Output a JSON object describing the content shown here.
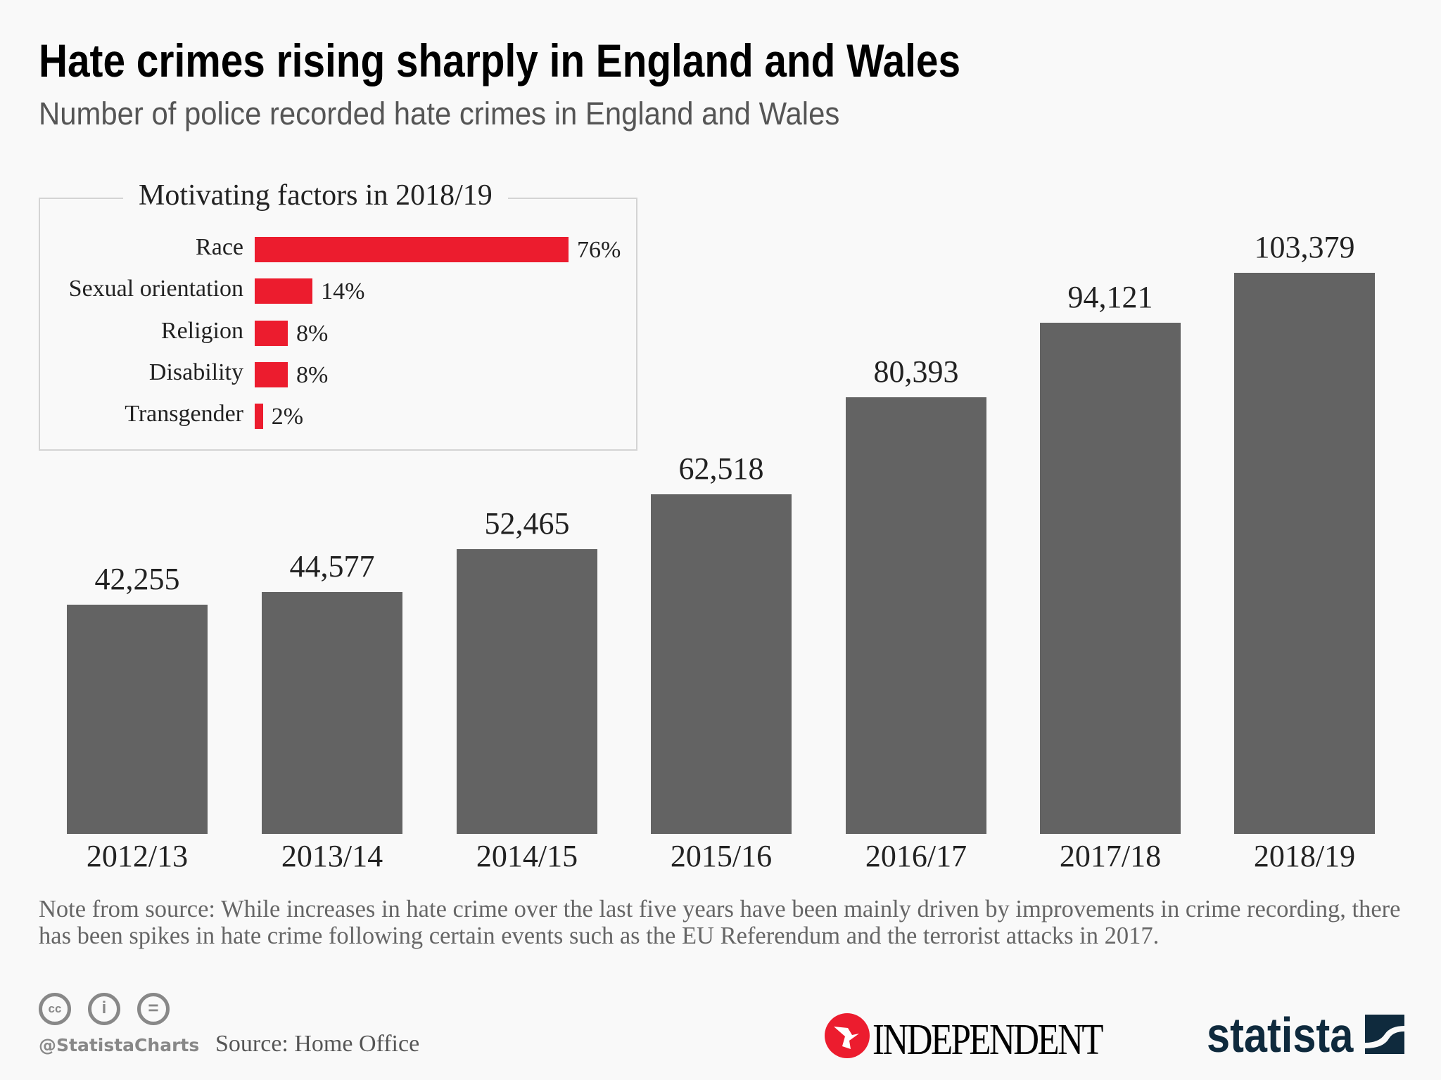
{
  "header": {
    "title": "Hate crimes rising sharply in England and Wales",
    "subtitle": "Number of police recorded hate crimes in England and Wales"
  },
  "chart_data": [
    {
      "type": "bar",
      "categories": [
        "2012/13",
        "2013/14",
        "2014/15",
        "2015/16",
        "2016/17",
        "2017/18",
        "2018/19"
      ],
      "values": [
        42255,
        44577,
        52465,
        62518,
        80393,
        94121,
        103379
      ],
      "data_labels": [
        "42,255",
        "44,577",
        "52,465",
        "62,518",
        "80,393",
        "94,121",
        "103,379"
      ],
      "title": "",
      "xlabel": "",
      "ylabel": "",
      "ylim": [
        0,
        103379
      ],
      "grid": false,
      "color": "#636363"
    },
    {
      "type": "bar",
      "orientation": "horizontal",
      "title": "Motivating factors in 2018/19",
      "categories": [
        "Race",
        "Sexual orientation",
        "Religion",
        "Disability",
        "Transgender"
      ],
      "values": [
        76,
        14,
        8,
        8,
        2
      ],
      "data_labels": [
        "76%",
        "14%",
        "8%",
        "8%",
        "2%"
      ],
      "unit": "%",
      "color": "#ec1c2e"
    }
  ],
  "note": "Note from source: While increases in hate crime over the last five years have been mainly driven by improvements in crime recording, there has been spikes in hate crime following certain events such as the EU Referendum and the terrorist attacks in 2017.",
  "footer": {
    "license_icons": [
      "cc-icon",
      "attribution-icon",
      "no-derivatives-icon"
    ],
    "handle": "@StatistaCharts",
    "source": "Source: Home Office",
    "logos": {
      "independent": "INDEPENDENT",
      "statista": "statista"
    }
  }
}
